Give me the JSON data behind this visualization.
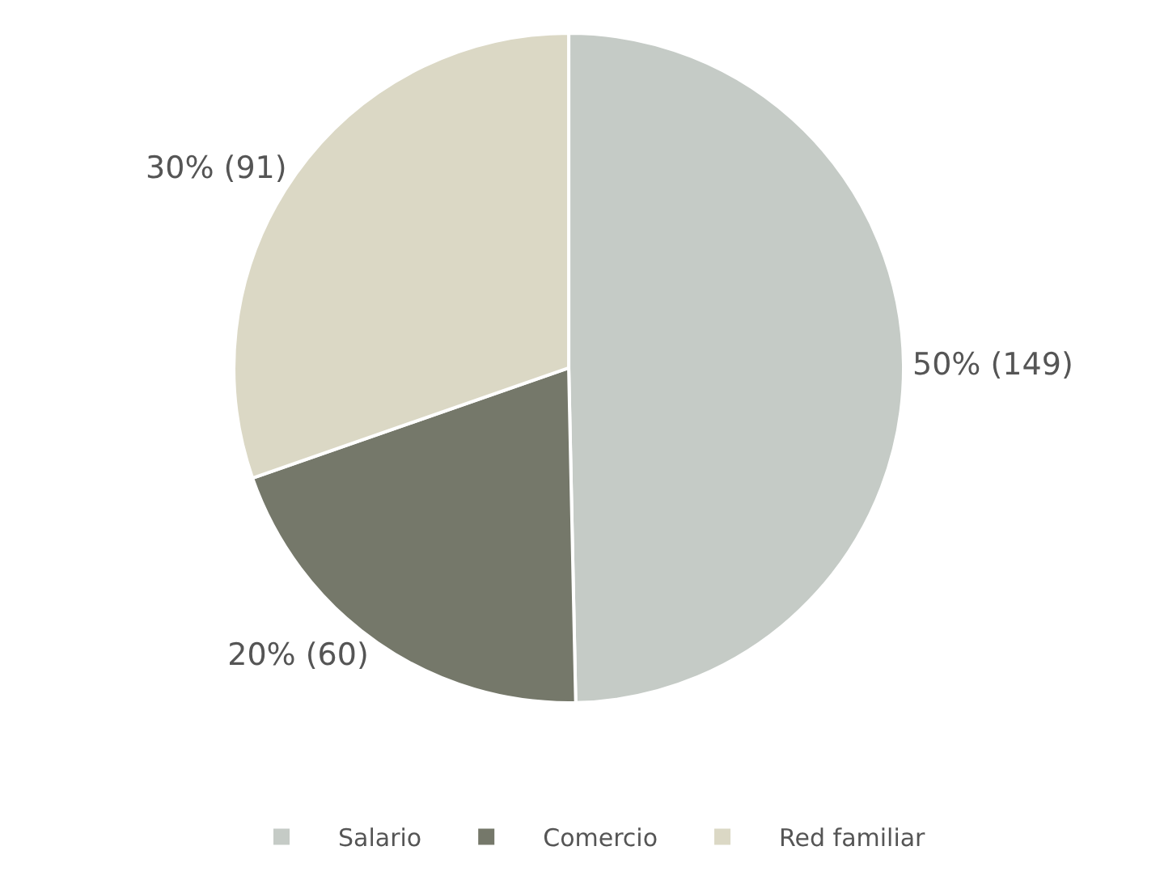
{
  "chart_data": {
    "type": "pie",
    "categories": [
      "Salario",
      "Comercio",
      "Red familiar"
    ],
    "values": [
      149,
      60,
      91
    ],
    "colors": [
      "#c5cbc6",
      "#75786a",
      "#dbd8c5"
    ],
    "value_labels": [
      "50% (149)",
      "20% (60)",
      "30% (91)"
    ],
    "legend": "bottom"
  }
}
